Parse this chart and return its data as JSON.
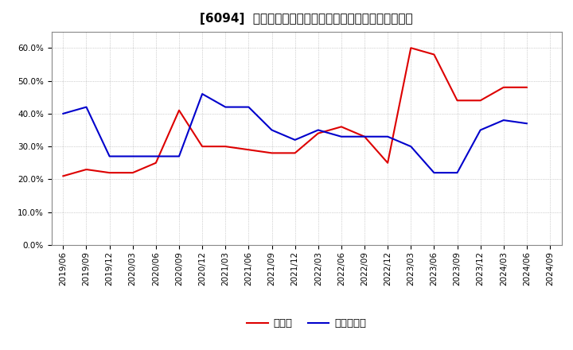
{
  "title": "[6094]  現預金、有利子負債の総資産に対する比率の推移",
  "ylim": [
    0.0,
    0.65
  ],
  "yticks": [
    0.0,
    0.1,
    0.2,
    0.3,
    0.4,
    0.5,
    0.6
  ],
  "dates": [
    "2019/06",
    "2019/09",
    "2019/12",
    "2020/03",
    "2020/06",
    "2020/09",
    "2020/12",
    "2021/03",
    "2021/06",
    "2021/09",
    "2021/12",
    "2022/03",
    "2022/06",
    "2022/09",
    "2022/12",
    "2023/03",
    "2023/06",
    "2023/09",
    "2023/12",
    "2024/03",
    "2024/06",
    "2024/09"
  ],
  "cash": [
    0.21,
    0.23,
    0.22,
    0.22,
    0.25,
    0.41,
    0.3,
    0.3,
    0.29,
    0.28,
    0.28,
    0.34,
    0.36,
    0.33,
    0.25,
    0.6,
    0.58,
    0.44,
    0.44,
    0.48,
    0.48,
    null
  ],
  "debt": [
    0.4,
    0.42,
    0.27,
    0.27,
    0.27,
    0.27,
    0.46,
    0.42,
    0.42,
    0.35,
    0.32,
    0.35,
    0.33,
    0.33,
    0.33,
    0.3,
    0.22,
    0.22,
    0.35,
    0.38,
    0.37,
    null
  ],
  "cash_color": "#dd0000",
  "debt_color": "#0000cc",
  "legend_cash": "現預金",
  "legend_debt": "有利子負債",
  "bg_color": "#ffffff",
  "grid_color": "#aaaaaa",
  "title_fontsize": 11,
  "tick_fontsize": 7.5,
  "legend_fontsize": 9.5
}
